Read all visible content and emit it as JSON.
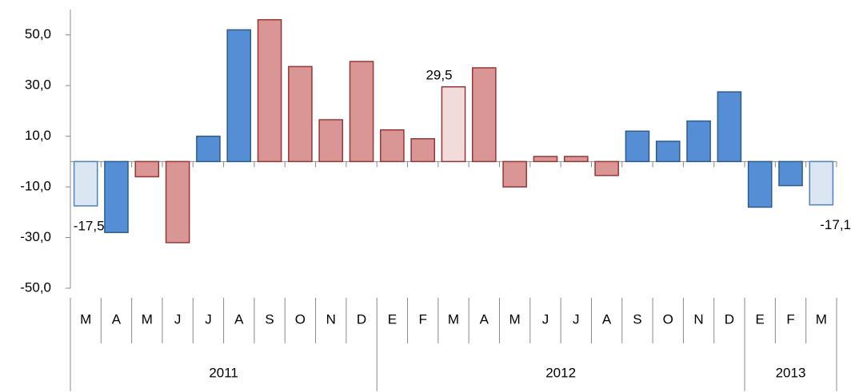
{
  "chart_data": {
    "type": "bar",
    "categories": [
      "M",
      "A",
      "M",
      "J",
      "J",
      "A",
      "S",
      "O",
      "N",
      "D",
      "E",
      "F",
      "M",
      "A",
      "M",
      "J",
      "J",
      "A",
      "S",
      "O",
      "N",
      "D",
      "E",
      "F",
      "M"
    ],
    "values": [
      -17.5,
      -28,
      -6,
      -32,
      10,
      52,
      56,
      37.5,
      16.5,
      39.5,
      12.5,
      9,
      29.5,
      37,
      -10,
      2,
      2,
      -5.5,
      12,
      8,
      16,
      27.5,
      -18,
      -9.5,
      -17.1
    ],
    "value_labels": [
      "-17,5",
      null,
      null,
      null,
      null,
      null,
      null,
      null,
      null,
      null,
      null,
      null,
      "29,5",
      null,
      null,
      null,
      null,
      null,
      null,
      null,
      null,
      null,
      null,
      null,
      "-17,1"
    ],
    "colors": [
      "#dce6f2",
      "#558ed5",
      "#d99694",
      "#d99694",
      "#558ed5",
      "#558ed5",
      "#d99694",
      "#d99694",
      "#d99694",
      "#d99694",
      "#d99694",
      "#d99694",
      "#f2dcdb",
      "#d99694",
      "#d99694",
      "#d99694",
      "#d99694",
      "#d99694",
      "#558ed5",
      "#558ed5",
      "#558ed5",
      "#558ed5",
      "#558ed5",
      "#558ed5",
      "#dce6f2"
    ],
    "edgecolors": [
      "#4f81bd",
      "#2e5c8a",
      "#953735",
      "#953735",
      "#2e5c8a",
      "#2e5c8a",
      "#953735",
      "#953735",
      "#953735",
      "#953735",
      "#953735",
      "#953735",
      "#953735",
      "#953735",
      "#953735",
      "#953735",
      "#953735",
      "#953735",
      "#2e5c8a",
      "#2e5c8a",
      "#2e5c8a",
      "#2e5c8a",
      "#2e5c8a",
      "#2e5c8a",
      "#4f81bd"
    ],
    "year_groups": [
      {
        "name": "2011",
        "span": 10
      },
      {
        "name": "2012",
        "span": 12
      },
      {
        "name": "2013",
        "span": 3
      }
    ],
    "ylim": [
      -50,
      60
    ],
    "yticks": [
      {
        "value": -50,
        "label": "-50,0"
      },
      {
        "value": -30,
        "label": "-30,0"
      },
      {
        "value": -10,
        "label": "-10,0"
      },
      {
        "value": 10,
        "label": "10,0"
      },
      {
        "value": 30,
        "label": "30,0"
      },
      {
        "value": 50,
        "label": "50,0"
      }
    ]
  }
}
